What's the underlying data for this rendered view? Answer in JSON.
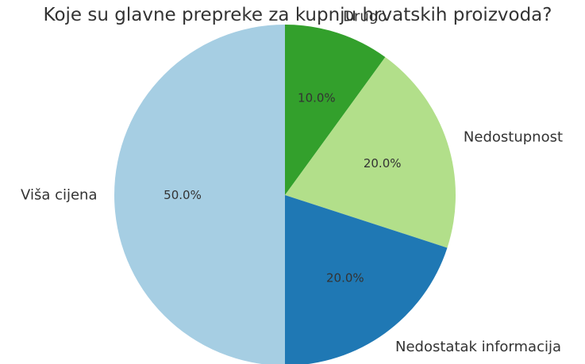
{
  "chart_data": {
    "type": "pie",
    "title": "Koje su glavne prepreke za kupnju hrvatskih proizvoda?",
    "categories": [
      "Drugo",
      "Nedostupnost",
      "Nedostatak informacija",
      "Viša cijena"
    ],
    "values": [
      10,
      20,
      20,
      50
    ],
    "percent_labels": [
      "10.0%",
      "20.0%",
      "20.0%",
      "50.0%"
    ],
    "colors": [
      "#33a02c",
      "#b2df8a",
      "#1f78b4",
      "#a6cee3"
    ],
    "start_angle_deg": 90,
    "direction": "clockwise",
    "legend": "none"
  }
}
